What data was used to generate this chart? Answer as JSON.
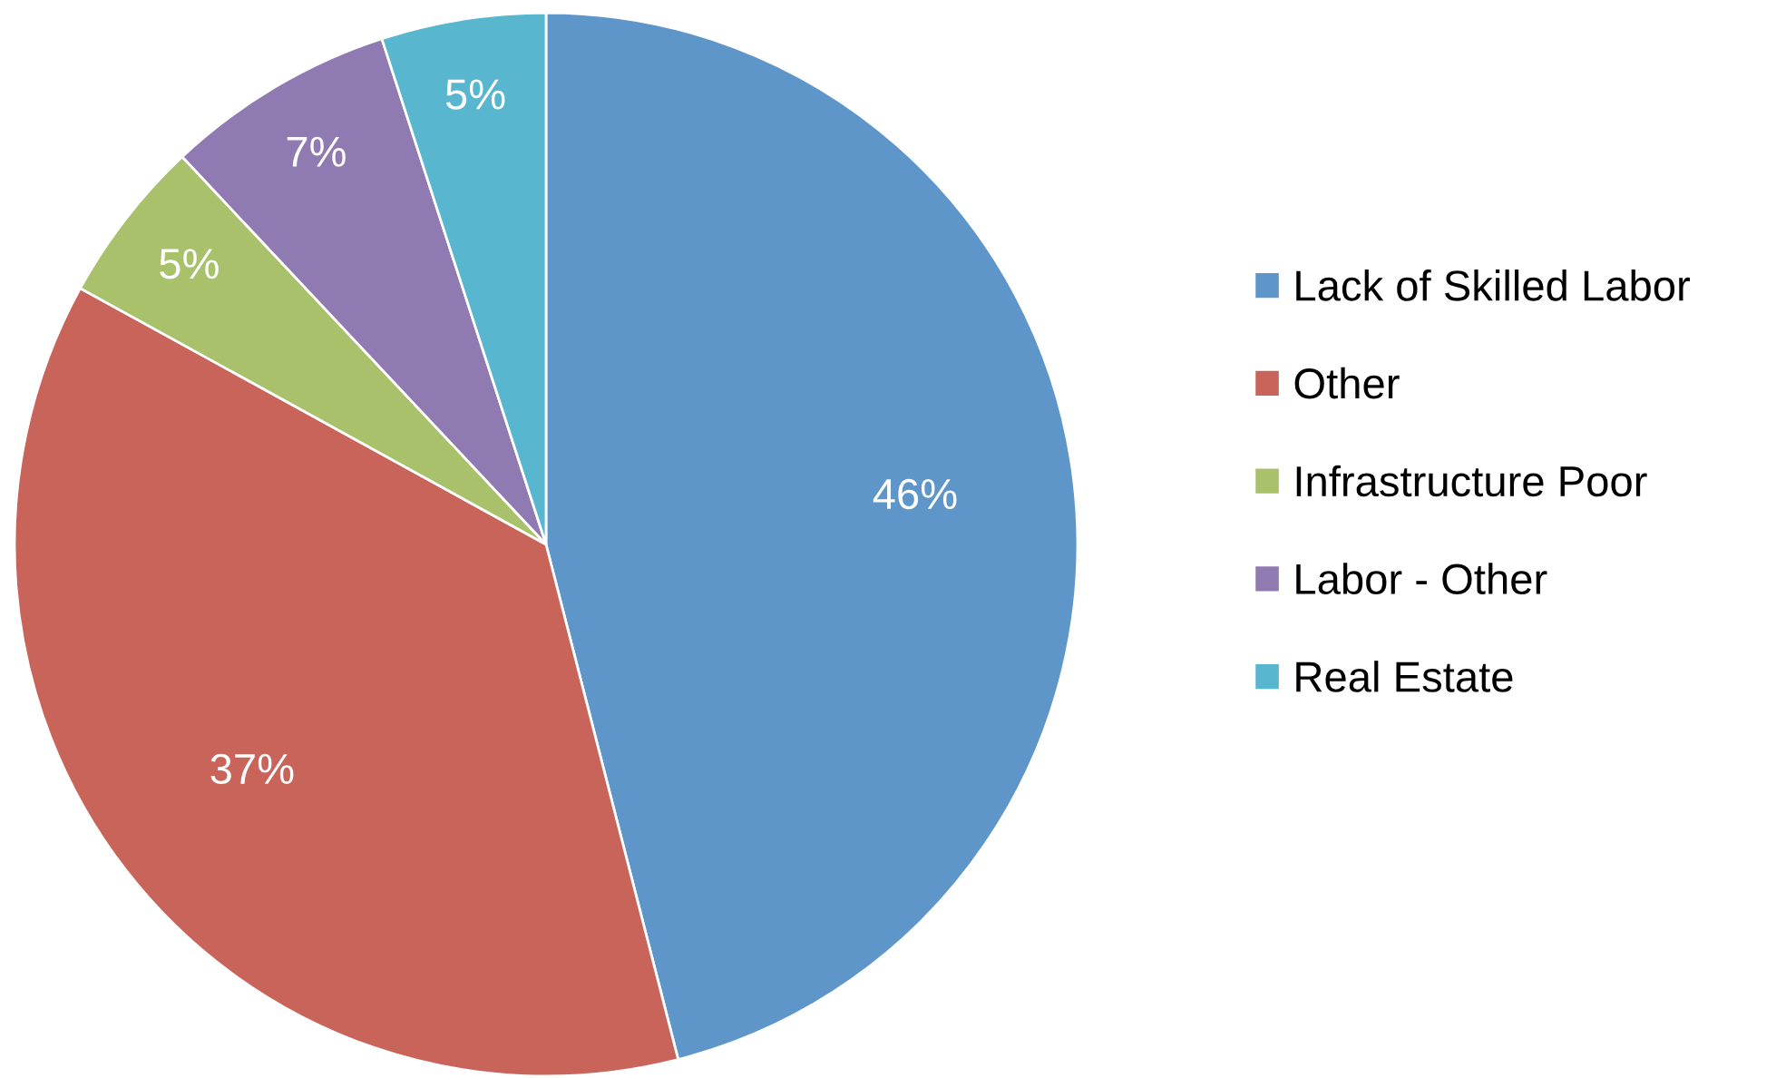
{
  "chart_data": {
    "type": "pie",
    "categories": [
      "Lack of Skilled Labor",
      "Other",
      "Infrastructure Poor",
      "Labor - Other",
      "Real Estate"
    ],
    "values": [
      46,
      37,
      5,
      7,
      5
    ],
    "colors": [
      "#5f96c9",
      "#c9645a",
      "#a8c16a",
      "#8f7ab2",
      "#58b6cf"
    ],
    "value_labels": [
      "46%",
      "37%",
      "5%",
      "7%",
      "5%"
    ],
    "legend": "right"
  }
}
